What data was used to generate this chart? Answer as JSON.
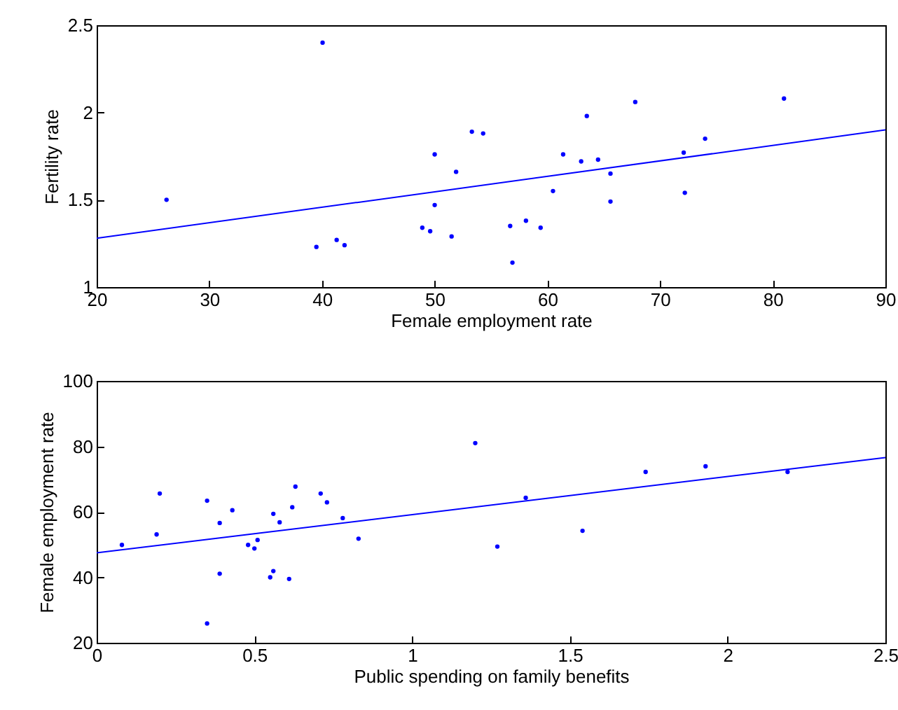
{
  "chart_data": [
    {
      "type": "scatter",
      "xlabel": "Female employment rate",
      "ylabel": "Fertility rate",
      "xlim": [
        20,
        90
      ],
      "ylim": [
        1,
        2.5
      ],
      "xticks": [
        20,
        30,
        40,
        50,
        60,
        70,
        80,
        90
      ],
      "yticks": [
        1,
        1.5,
        2,
        2.5
      ],
      "grid": false,
      "series": [
        {
          "color": "#0000ff",
          "marker": "circle",
          "x": [
            26.2,
            40.05,
            39.5,
            41.3,
            42.0,
            48.9,
            49.6,
            50.0,
            50.0,
            51.5,
            51.9,
            53.3,
            54.3,
            56.7,
            56.9,
            58.1,
            59.4,
            60.5,
            61.4,
            63.0,
            63.5,
            64.5,
            65.6,
            65.6,
            67.8,
            72.1,
            72.2,
            74.0,
            81.0
          ],
          "values": [
            1.5,
            2.4,
            1.23,
            1.27,
            1.24,
            1.34,
            1.32,
            1.76,
            1.47,
            1.29,
            1.66,
            1.89,
            1.88,
            1.35,
            1.14,
            1.38,
            1.34,
            1.55,
            1.76,
            1.72,
            1.98,
            1.73,
            1.65,
            1.49,
            2.06,
            1.77,
            1.54,
            1.85,
            2.08
          ]
        },
        {
          "type": "line",
          "color": "#0000ff",
          "x": [
            20,
            90
          ],
          "values": [
            1.28,
            1.9
          ]
        }
      ]
    },
    {
      "type": "scatter",
      "xlabel": "Public spending on family benefits",
      "ylabel": "Female employment rate",
      "xlim": [
        0,
        2.5
      ],
      "ylim": [
        20,
        100
      ],
      "xticks": [
        0,
        0.5,
        1,
        1.5,
        2,
        2.5
      ],
      "yticks": [
        20,
        40,
        60,
        80,
        100
      ],
      "grid": false,
      "series": [
        {
          "color": "#0000ff",
          "marker": "circle",
          "x": [
            0.08,
            0.19,
            0.2,
            0.35,
            0.35,
            0.39,
            0.39,
            0.43,
            0.48,
            0.5,
            0.51,
            0.55,
            0.56,
            0.56,
            0.58,
            0.61,
            0.62,
            0.63,
            0.71,
            0.73,
            0.78,
            0.83,
            1.2,
            1.27,
            1.36,
            1.54,
            1.74,
            1.93,
            2.19
          ],
          "values": [
            49.9,
            53.1,
            65.6,
            63.4,
            25.9,
            56.6,
            41.1,
            60.5,
            49.9,
            48.8,
            51.4,
            40.0,
            59.4,
            41.9,
            56.8,
            39.5,
            61.4,
            67.7,
            65.6,
            62.9,
            58.1,
            51.8,
            81.0,
            49.4,
            64.3,
            54.2,
            72.2,
            73.9,
            72.2
          ]
        },
        {
          "type": "line",
          "color": "#0000ff",
          "x": [
            0,
            2.5
          ],
          "values": [
            47.5,
            76.6
          ]
        }
      ]
    }
  ]
}
